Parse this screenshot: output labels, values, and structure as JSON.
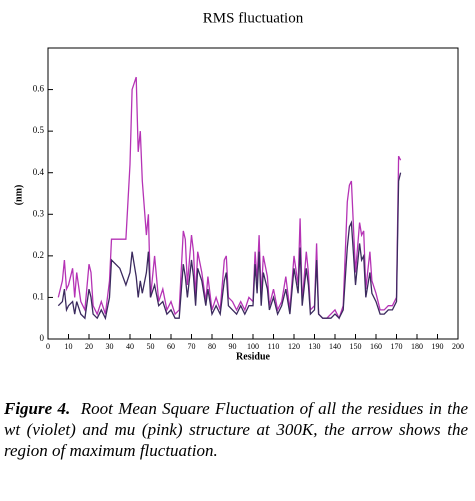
{
  "chart_data": {
    "type": "line",
    "title": "RMS fluctuation",
    "x_label": "Residue",
    "y_label": "(nm)",
    "xlim": [
      0,
      200
    ],
    "xticks": [
      0,
      10,
      20,
      30,
      40,
      50,
      60,
      70,
      80,
      90,
      100,
      110,
      120,
      130,
      140,
      150,
      160,
      170,
      180,
      190,
      200
    ],
    "ylim": [
      0,
      0.7
    ],
    "yticks": [
      0,
      0.1,
      0.2,
      0.3,
      0.4,
      0.5,
      0.6
    ],
    "x": [
      5,
      7,
      8,
      9,
      10,
      12,
      13,
      14,
      16,
      18,
      20,
      21,
      22,
      24,
      26,
      28,
      30,
      31,
      35,
      38,
      40,
      41,
      43,
      44,
      45,
      46,
      48,
      49,
      50,
      52,
      54,
      56,
      58,
      60,
      62,
      64,
      66,
      67,
      68,
      70,
      71,
      72,
      73,
      75,
      77,
      78,
      80,
      82,
      84,
      86,
      87,
      88,
      90,
      92,
      94,
      96,
      98,
      100,
      101,
      102,
      103,
      104,
      105,
      107,
      108,
      110,
      112,
      114,
      116,
      118,
      120,
      122,
      123,
      124,
      126,
      127,
      128,
      130,
      131,
      132,
      134,
      136,
      138,
      140,
      142,
      144,
      146,
      147,
      148,
      150,
      152,
      153,
      154,
      155,
      157,
      158,
      160,
      162,
      164,
      166,
      168,
      170,
      171,
      172
    ],
    "series": [
      {
        "color": "#b533b5",
        "values": [
          0.1,
          0.14,
          0.19,
          0.12,
          0.13,
          0.17,
          0.1,
          0.16,
          0.09,
          0.07,
          0.18,
          0.16,
          0.08,
          0.06,
          0.09,
          0.06,
          0.14,
          0.24,
          0.24,
          0.24,
          0.42,
          0.6,
          0.63,
          0.45,
          0.5,
          0.38,
          0.25,
          0.3,
          0.1,
          0.2,
          0.09,
          0.12,
          0.07,
          0.09,
          0.06,
          0.07,
          0.26,
          0.24,
          0.13,
          0.25,
          0.21,
          0.1,
          0.21,
          0.16,
          0.09,
          0.15,
          0.07,
          0.1,
          0.07,
          0.19,
          0.2,
          0.1,
          0.09,
          0.07,
          0.09,
          0.07,
          0.1,
          0.09,
          0.21,
          0.14,
          0.25,
          0.1,
          0.2,
          0.15,
          0.08,
          0.12,
          0.07,
          0.09,
          0.15,
          0.07,
          0.2,
          0.13,
          0.29,
          0.09,
          0.21,
          0.16,
          0.07,
          0.08,
          0.23,
          0.06,
          0.05,
          0.05,
          0.06,
          0.07,
          0.05,
          0.08,
          0.33,
          0.37,
          0.38,
          0.16,
          0.28,
          0.25,
          0.26,
          0.12,
          0.21,
          0.14,
          0.11,
          0.07,
          0.07,
          0.08,
          0.08,
          0.1,
          0.44,
          0.43
        ]
      },
      {
        "color": "#3b2a5e",
        "values": [
          0.08,
          0.09,
          0.12,
          0.07,
          0.08,
          0.09,
          0.06,
          0.09,
          0.06,
          0.05,
          0.12,
          0.1,
          0.06,
          0.05,
          0.07,
          0.05,
          0.1,
          0.19,
          0.17,
          0.13,
          0.16,
          0.21,
          0.15,
          0.1,
          0.14,
          0.11,
          0.16,
          0.21,
          0.1,
          0.13,
          0.08,
          0.09,
          0.06,
          0.07,
          0.05,
          0.05,
          0.18,
          0.15,
          0.1,
          0.19,
          0.15,
          0.08,
          0.17,
          0.14,
          0.08,
          0.12,
          0.06,
          0.08,
          0.06,
          0.14,
          0.16,
          0.08,
          0.07,
          0.06,
          0.08,
          0.06,
          0.08,
          0.08,
          0.18,
          0.11,
          0.21,
          0.08,
          0.16,
          0.12,
          0.07,
          0.1,
          0.06,
          0.08,
          0.12,
          0.06,
          0.17,
          0.11,
          0.22,
          0.08,
          0.17,
          0.13,
          0.06,
          0.07,
          0.19,
          0.06,
          0.05,
          0.05,
          0.05,
          0.06,
          0.05,
          0.07,
          0.22,
          0.27,
          0.28,
          0.13,
          0.23,
          0.19,
          0.2,
          0.1,
          0.16,
          0.11,
          0.09,
          0.06,
          0.06,
          0.07,
          0.07,
          0.09,
          0.38,
          0.4
        ]
      }
    ]
  },
  "caption": {
    "label": "Figure 4.",
    "text": "Root Mean Square Fluctuation of all the residues in the wt (violet) and mu (pink) structure at 300K, the arrow shows the region of maximum fluctuation."
  }
}
